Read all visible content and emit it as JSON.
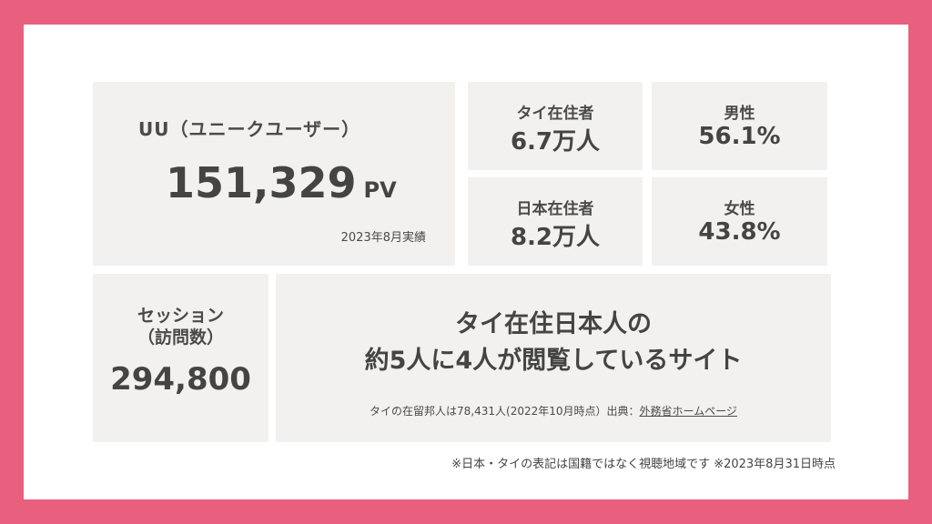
{
  "uu": {
    "label": "UU（ユニークユーザー）",
    "value": "151,329",
    "unit": "PV",
    "note": "2023年8月実績"
  },
  "stats": {
    "thai_residents": {
      "label": "タイ在住者",
      "value": "6.7万人"
    },
    "male": {
      "label": "男性",
      "value": "56.1%"
    },
    "japan_residents": {
      "label": "日本在住者",
      "value": "8.2万人"
    },
    "female": {
      "label": "女性",
      "value": "43.8%"
    }
  },
  "session": {
    "label_line1": "セッション",
    "label_line2": "（訪問数）",
    "value": "294,800"
  },
  "thai_japanese": {
    "headline_line1": "タイ在住日本人の",
    "headline_line2": "約5人に4人が閲覧しているサイト",
    "source_text": "タイの在留邦人は78,431人(2022年10月時点）出典：",
    "source_link": "外務省ホームページ"
  },
  "footnote": "※日本・タイの表記は国籍ではなく視聴地域です ※2023年8月31日時点",
  "colors": {
    "frame": "#e8607e",
    "card": "#f2f1ef",
    "text": "#4a4a4a"
  }
}
